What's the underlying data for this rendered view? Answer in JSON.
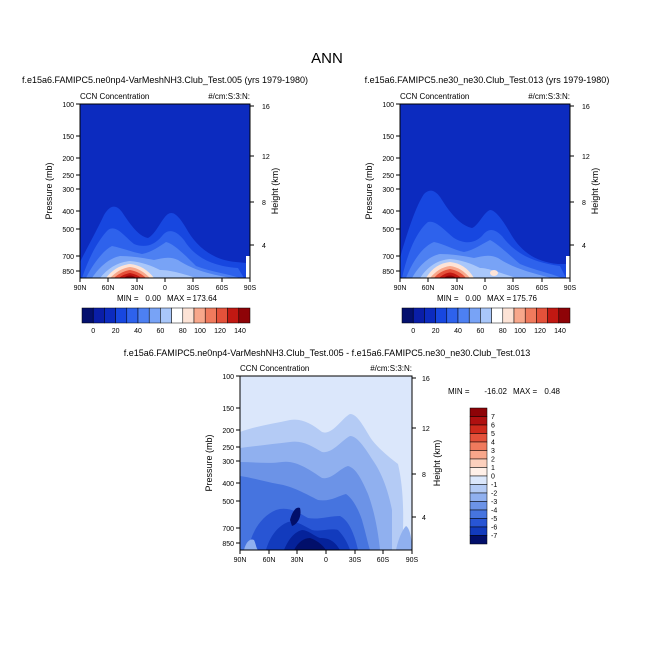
{
  "figure_title": "ANN",
  "chart_data": [
    {
      "type": "contour",
      "title": "f.e15a6.FAMIPC5.ne0np4-VarMeshNH3.Club_Test.005 (yrs 1979-1980)",
      "left_string": "CCN Concentration",
      "right_string": "#/cm:S:3:N:",
      "xlabel": "",
      "ylabel": "Pressure (mb)",
      "y2label": "Height (km)",
      "x_ticks": [
        "90N",
        "60N",
        "30N",
        "0",
        "30S",
        "60S",
        "90S"
      ],
      "y_ticks": [
        "100",
        "150",
        "200",
        "250",
        "300",
        "400",
        "500",
        "700",
        "850"
      ],
      "y2_ticks": [
        "16",
        "12",
        "8",
        "4"
      ],
      "stats": {
        "min_label": "MIN =",
        "min": "0.00",
        "max_label": "MAX =",
        "max": "173.64"
      },
      "colorbar_levels": [
        "0",
        "20",
        "40",
        "60",
        "80",
        "100",
        "120",
        "140"
      ]
    },
    {
      "type": "contour",
      "title": "f.e15a6.FAMIPC5.ne30_ne30.Club_Test.013 (yrs 1979-1980)",
      "left_string": "CCN Concentration",
      "right_string": "#/cm:S:3:N:",
      "xlabel": "",
      "ylabel": "Pressure (mb)",
      "y2label": "Height (km)",
      "x_ticks": [
        "90N",
        "60N",
        "30N",
        "0",
        "30S",
        "60S",
        "90S"
      ],
      "y_ticks": [
        "100",
        "150",
        "200",
        "250",
        "300",
        "400",
        "500",
        "700",
        "850"
      ],
      "y2_ticks": [
        "16",
        "12",
        "8",
        "4"
      ],
      "stats": {
        "min_label": "MIN =",
        "min": "0.00",
        "max_label": "MAX =",
        "max": "175.76"
      },
      "colorbar_levels": [
        "0",
        "20",
        "40",
        "60",
        "80",
        "100",
        "120",
        "140"
      ]
    },
    {
      "type": "contour",
      "title": "f.e15a6.FAMIPC5.ne0np4-VarMeshNH3.Club_Test.005 - f.e15a6.FAMIPC5.ne30_ne30.Club_Test.013",
      "left_string": "CCN Concentration",
      "right_string": "#/cm:S:3:N:",
      "xlabel": "",
      "ylabel": "Pressure (mb)",
      "y2label": "Height (km)",
      "x_ticks": [
        "90N",
        "60N",
        "30N",
        "0",
        "30S",
        "60S",
        "90S"
      ],
      "y_ticks": [
        "100",
        "150",
        "200",
        "250",
        "300",
        "400",
        "500",
        "700",
        "850"
      ],
      "y2_ticks": [
        "16",
        "12",
        "8",
        "4"
      ],
      "stats": {
        "min_label": "MIN =",
        "min": "-16.02",
        "max_label": "MAX =",
        "max": "0.48"
      },
      "colorbar_levels": [
        "7",
        "6",
        "5",
        "4",
        "3",
        "2",
        "1",
        "0",
        "-1",
        "-2",
        "-3",
        "-4",
        "-5",
        "-6",
        "-7"
      ]
    }
  ]
}
